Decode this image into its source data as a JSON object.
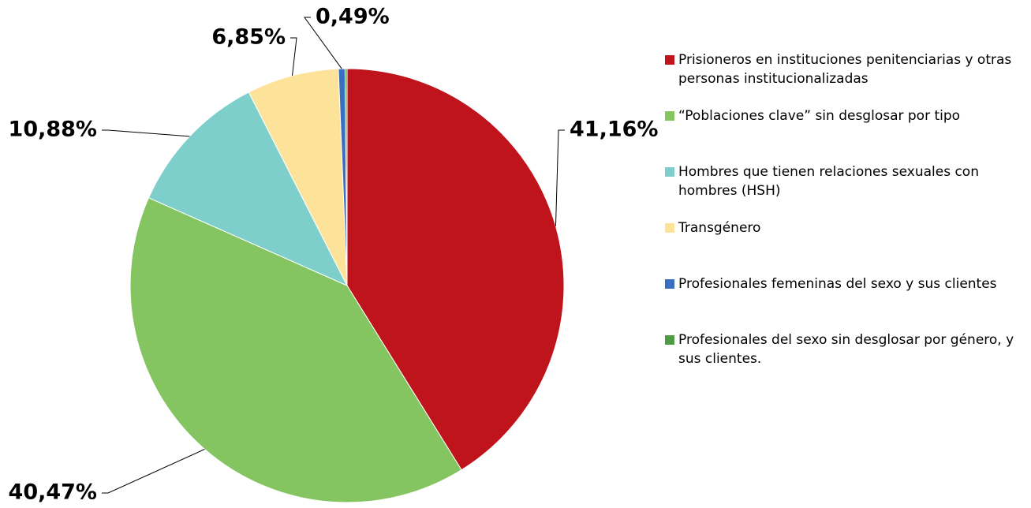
{
  "chart_data": {
    "type": "pie",
    "categories": [
      "Prisioneros en instituciones penitenciarias y otras personas institucionalizadas",
      "“Poblaciones clave” sin desglosar por tipo",
      "Hombres que tienen relaciones sexuales con hombres (HSH)",
      "Transgénero",
      "Profesionales femeninas del sexo y sus clientes",
      "Profesionales del sexo sin desglosar por género, y sus clientes."
    ],
    "values": [
      41.16,
      40.47,
      10.88,
      6.85,
      0.49,
      0.15
    ],
    "value_labels": [
      "41,16%",
      "40,47%",
      "10,88%",
      "6,85%",
      "0,49%",
      null
    ],
    "colors": [
      "#c0141c",
      "#84c561",
      "#7ecfcb",
      "#fde29a",
      "#3a6fc0",
      "#4f9a44"
    ]
  }
}
